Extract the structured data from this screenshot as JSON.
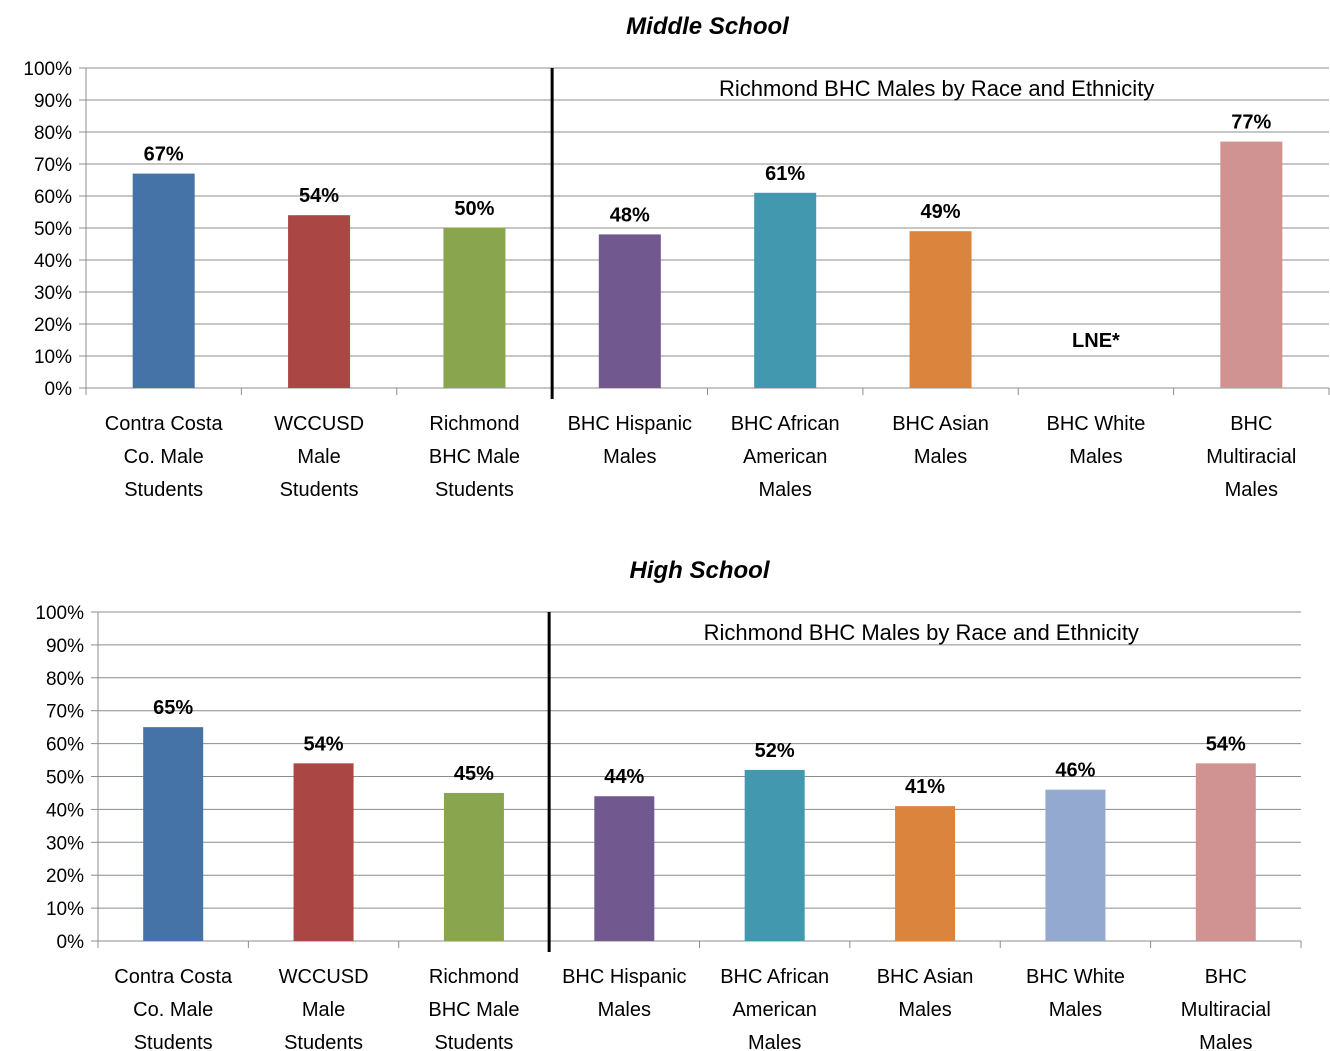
{
  "chart_data": [
    {
      "type": "bar",
      "title": "Middle School",
      "categories": [
        "Contra Costa Co. Male Students",
        "WCCUSD Male Students",
        "Richmond BHC Male Students",
        "BHC Hispanic Males",
        "BHC African American Males",
        "BHC Asian Males",
        "BHC White Males",
        "BHC Multiracial Males"
      ],
      "category_lines": [
        [
          "Contra Costa",
          "Co. Male",
          "Students"
        ],
        [
          "WCCUSD",
          "Male",
          "Students"
        ],
        [
          "Richmond",
          "BHC Male",
          "Students"
        ],
        [
          "BHC Hispanic",
          "Males"
        ],
        [
          "BHC African",
          "American",
          "Males"
        ],
        [
          "BHC Asian",
          "Males"
        ],
        [
          "BHC White",
          "Males"
        ],
        [
          "BHC",
          "Multiracial",
          "Males"
        ]
      ],
      "values": [
        67,
        54,
        50,
        48,
        61,
        49,
        null,
        77
      ],
      "data_labels": [
        "67%",
        "54%",
        "50%",
        "48%",
        "61%",
        "49%",
        "LNE*",
        "77%"
      ],
      "colors": [
        "#4572A7",
        "#AA4643",
        "#89A54E",
        "#71588F",
        "#4198AF",
        "#DB843D",
        "#93A9CF",
        "#D19392"
      ],
      "ylim": [
        0,
        100
      ],
      "yticks": [
        "0%",
        "10%",
        "20%",
        "30%",
        "40%",
        "50%",
        "60%",
        "70%",
        "80%",
        "90%",
        "100%"
      ],
      "grid": true,
      "annotation": "Richmond BHC Males by Race and Ethnicity",
      "divider_after_category": 3
    },
    {
      "type": "bar",
      "title": "High School",
      "categories": [
        "Contra Costa Co. Male Students",
        "WCCUSD Male Students",
        "Richmond BHC Male Students",
        "BHC Hispanic Males",
        "BHC African American Males",
        "BHC Asian Males",
        "BHC White Males",
        "BHC Multiracial Males"
      ],
      "category_lines": [
        [
          "Contra Costa",
          "Co. Male",
          "Students"
        ],
        [
          "WCCUSD",
          "Male",
          "Students"
        ],
        [
          "Richmond",
          "BHC Male",
          "Students"
        ],
        [
          "BHC Hispanic",
          "Males"
        ],
        [
          "BHC African",
          "American",
          "Males"
        ],
        [
          "BHC Asian",
          "Males"
        ],
        [
          "BHC White",
          "Males"
        ],
        [
          "BHC",
          "Multiracial",
          "Males"
        ]
      ],
      "values": [
        65,
        54,
        45,
        44,
        52,
        41,
        46,
        54
      ],
      "data_labels": [
        "65%",
        "54%",
        "45%",
        "44%",
        "52%",
        "41%",
        "46%",
        "54%"
      ],
      "colors": [
        "#4572A7",
        "#AA4643",
        "#89A54E",
        "#71588F",
        "#4198AF",
        "#DB843D",
        "#93A9CF",
        "#D19392"
      ],
      "ylim": [
        0,
        100
      ],
      "yticks": [
        "0%",
        "10%",
        "20%",
        "30%",
        "40%",
        "50%",
        "60%",
        "70%",
        "80%",
        "90%",
        "100%"
      ],
      "grid": true,
      "annotation": "Richmond BHC Males by Race and Ethnicity",
      "divider_after_category": 3
    }
  ]
}
